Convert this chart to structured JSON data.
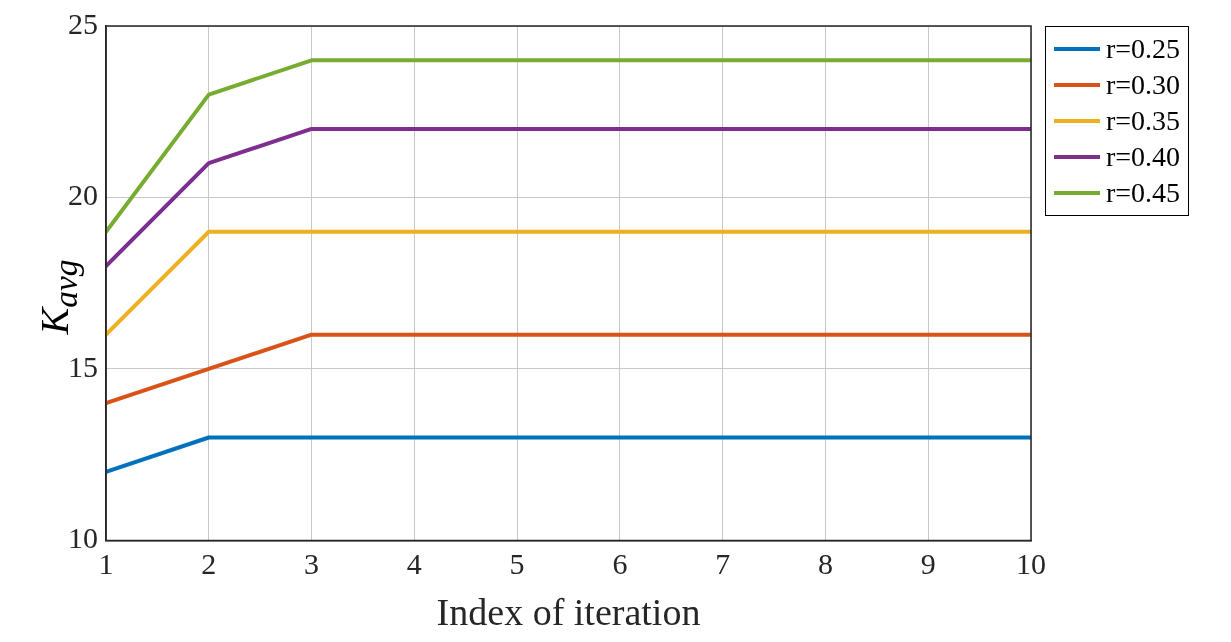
{
  "chart_data": {
    "type": "line",
    "xlabel": "Index of iteration",
    "ylabel": "K$_{avg}$",
    "x": [
      1,
      2,
      3,
      4,
      5,
      6,
      7,
      8,
      9,
      10
    ],
    "series": [
      {
        "name": "r=0.25",
        "color": "#0072bd",
        "values": [
          12,
          13,
          13,
          13,
          13,
          13,
          13,
          13,
          13,
          13
        ]
      },
      {
        "name": "r=0.30",
        "color": "#d95319",
        "values": [
          14,
          15,
          16,
          16,
          16,
          16,
          16,
          16,
          16,
          16
        ]
      },
      {
        "name": "r=0.35",
        "color": "#edb120",
        "values": [
          16,
          19,
          19,
          19,
          19,
          19,
          19,
          19,
          19,
          19
        ]
      },
      {
        "name": "r=0.40",
        "color": "#7e2f8e",
        "values": [
          18,
          21,
          22,
          22,
          22,
          22,
          22,
          22,
          22,
          22
        ]
      },
      {
        "name": "r=0.45",
        "color": "#77ac30",
        "values": [
          19,
          23,
          24,
          24,
          24,
          24,
          24,
          24,
          24,
          24
        ]
      }
    ],
    "xlim": [
      1,
      10
    ],
    "xticks": [
      1,
      2,
      3,
      4,
      5,
      6,
      7,
      8,
      9,
      10
    ],
    "ylim": [
      10,
      25
    ],
    "yticks": [
      10,
      15,
      20,
      25
    ],
    "grid": true,
    "legend": "right",
    "marker": "none",
    "line_style": "solid"
  }
}
